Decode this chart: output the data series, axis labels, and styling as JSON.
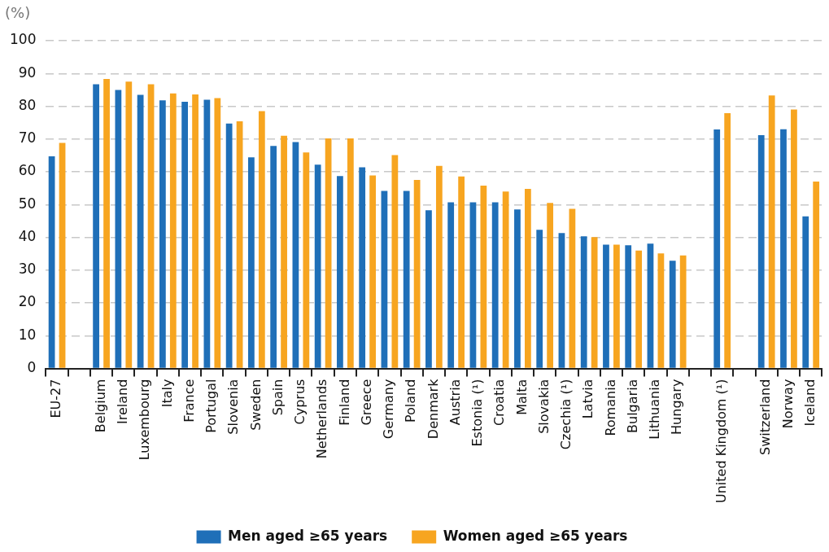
{
  "chart_data": {
    "type": "bar",
    "ylabel": "(%)",
    "categories": [
      "EU-27",
      null,
      "Belgium",
      "Ireland",
      "Luxembourg",
      "Italy",
      "France",
      "Portugal",
      "Slovenia",
      "Sweden",
      "Spain",
      "Cyprus",
      "Netherlands",
      "Finland",
      "Greece",
      "Germany",
      "Poland",
      "Denmark",
      "Austria",
      "Estonia (¹)",
      "Croatia",
      "Malta",
      "Slovakia",
      "Czechia (¹)",
      "Latvia",
      "Romania",
      "Bulgaria",
      "Lithuania",
      "Hungary",
      null,
      "United Kingdom (¹)",
      null,
      "Switzerland",
      "Norway",
      "Iceland"
    ],
    "series": [
      {
        "name": "Men aged ≥65 years",
        "color": "#1f6fb8",
        "values": [
          64.7,
          null,
          86.7,
          85,
          83.5,
          81.8,
          81.4,
          82,
          74.7,
          64.4,
          67.9,
          69.1,
          62.2,
          58.7,
          61.4,
          54.2,
          54.2,
          48.3,
          50.7,
          50.7,
          50.7,
          48.5,
          42.3,
          41.3,
          40.3,
          37.8,
          37.6,
          38.1,
          32.9,
          null,
          72.9,
          null,
          71.2,
          73,
          46.4
        ]
      },
      {
        "name": "Women aged ≥65 years",
        "color": "#f7a520",
        "values": [
          68.8,
          null,
          88.3,
          87.5,
          86.7,
          83.9,
          83.6,
          82.5,
          75.4,
          78.5,
          71,
          65.9,
          70.2,
          70.2,
          58.9,
          65.1,
          57.5,
          61.8,
          58.6,
          55.8,
          54,
          54.8,
          50.5,
          48.7,
          40.1,
          37.8,
          36,
          35.1,
          34.5,
          null,
          77.9,
          null,
          83.3,
          79,
          57
        ]
      }
    ],
    "ylim": [
      0,
      100
    ],
    "yticks": [
      0,
      10,
      20,
      30,
      40,
      50,
      60,
      70,
      80,
      90,
      100
    ],
    "grid": "y",
    "legend": "bottom"
  }
}
